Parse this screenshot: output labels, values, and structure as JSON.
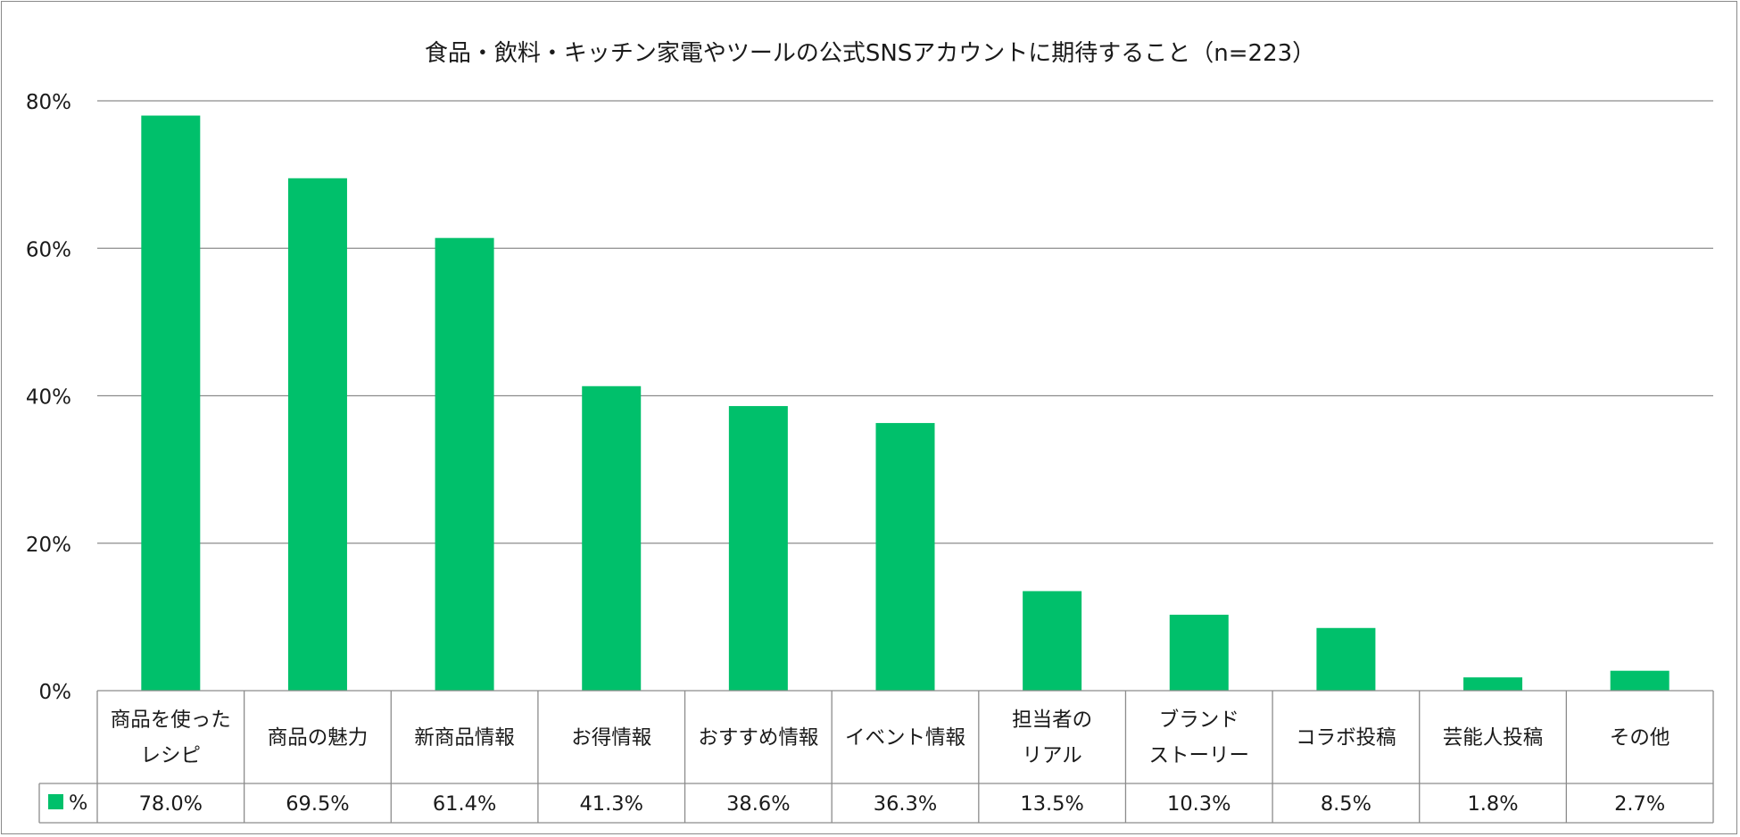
{
  "chart_data": {
    "type": "bar",
    "title": "食品・飲料・キッチン家電やツールの公式SNSアカウントに期待すること（n=223）",
    "categories": [
      [
        "商品を使った",
        "レシピ"
      ],
      [
        "商品の魅力"
      ],
      [
        "新商品情報"
      ],
      [
        "お得情報"
      ],
      [
        "おすすめ情報"
      ],
      [
        "イベント情報"
      ],
      [
        "担当者の",
        "リアル"
      ],
      [
        "ブランド",
        "ストーリー"
      ],
      [
        "コラボ投稿"
      ],
      [
        "芸能人投稿"
      ],
      [
        "その他"
      ]
    ],
    "series": [
      {
        "name": "%",
        "values": [
          78.0,
          69.5,
          61.4,
          41.3,
          38.6,
          36.3,
          13.5,
          10.3,
          8.5,
          1.8,
          2.7
        ],
        "labels": [
          "78.0%",
          "69.5%",
          "61.4%",
          "41.3%",
          "38.6%",
          "36.3%",
          "13.5%",
          "10.3%",
          "8.5%",
          "1.8%",
          "2.7%"
        ],
        "color": "#00c06b"
      }
    ],
    "ylim": [
      0,
      80
    ],
    "yticks": [
      "0%",
      "20%",
      "40%",
      "60%",
      "80%"
    ],
    "grid": true,
    "legend": "data-table"
  }
}
